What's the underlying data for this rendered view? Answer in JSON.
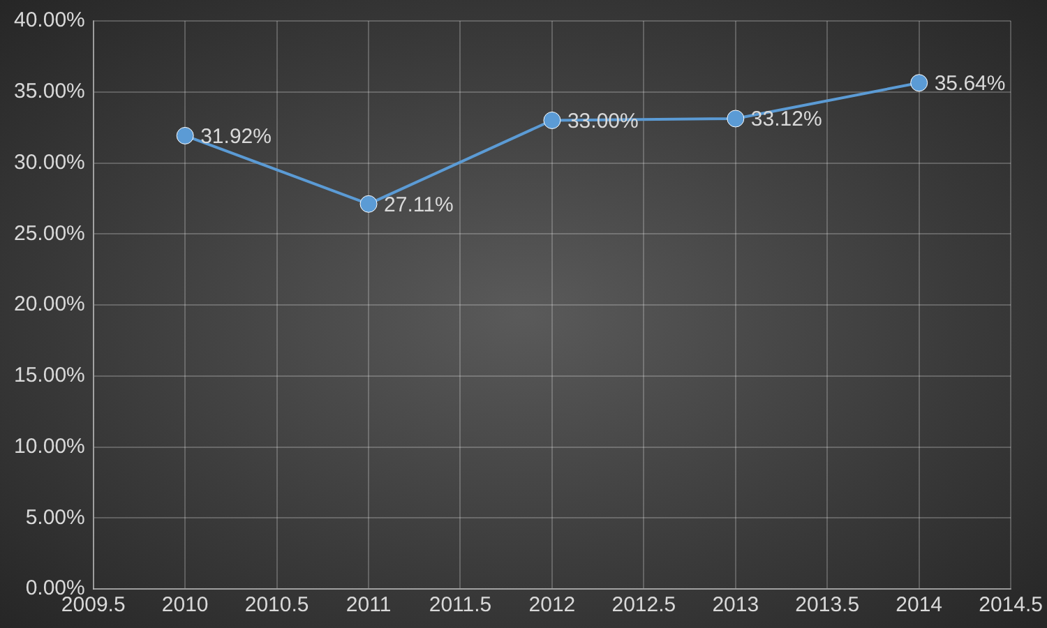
{
  "chart_data": {
    "type": "line",
    "x": [
      2010,
      2011,
      2012,
      2013,
      2014
    ],
    "series": [
      {
        "color": "#5b9bd5",
        "values": [
          31.92,
          27.11,
          33.0,
          33.12,
          35.64
        ],
        "value_labels": [
          "31.92%",
          "27.11%",
          "33.00%",
          "33.12%",
          "35.64%"
        ]
      }
    ],
    "xlim": [
      2009.5,
      2014.5
    ],
    "xticks": [
      2009.5,
      2010,
      2010.5,
      2011,
      2011.5,
      2012,
      2012.5,
      2013,
      2013.5,
      2014,
      2014.5
    ],
    "ylim": [
      0,
      40
    ],
    "yticks": [
      {
        "value": 0,
        "label": "0.00%"
      },
      {
        "value": 5,
        "label": "5.00%"
      },
      {
        "value": 10,
        "label": "10.00%"
      },
      {
        "value": 15,
        "label": "15.00%"
      },
      {
        "value": 20,
        "label": "20.00%"
      },
      {
        "value": 25,
        "label": "25.00%"
      },
      {
        "value": 30,
        "label": "30.00%"
      },
      {
        "value": 35,
        "label": "35.00%"
      },
      {
        "value": 40,
        "label": "40.00%"
      }
    ],
    "grid": true,
    "marker": "circle",
    "legend": false
  }
}
